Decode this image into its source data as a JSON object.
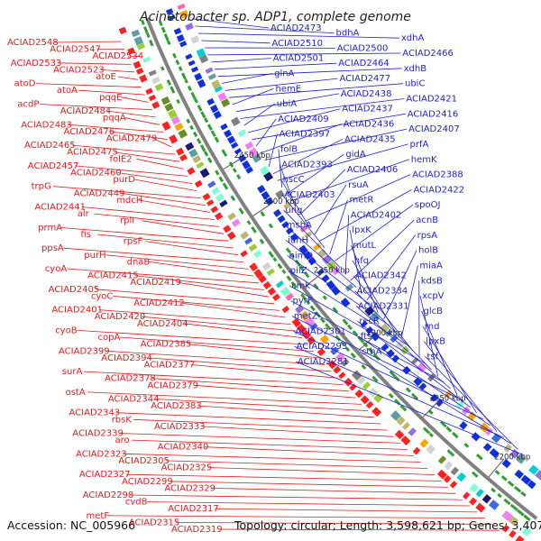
{
  "title": "Acinetobacter sp. ADP1, complete genome",
  "footer": {
    "accession": "Accession: NC_005966",
    "stats": "Topology: circular; Length: 3,598,621 bp; Genes: 3,407"
  },
  "colors": {
    "left_labels": "#e31a1c",
    "right_labels": "#1f1fd1",
    "backbone": "#808080",
    "tick": "#2ea02e",
    "forward_strand": "#ff2020",
    "reverse_strand": "#1030e0"
  },
  "scale_labels": [
    "2450 kbp",
    "2400 kbp",
    "2350 kbp",
    "2300 kbp",
    "2250 kbp",
    "2200 kbp"
  ],
  "left_labels": [
    "ACIAD2548",
    "ACIAD2547",
    "ACIAD2534",
    "ACIAD2533",
    "ACIAD2523",
    "atoE",
    "atoD",
    "atoA",
    "pqqE",
    "acdP",
    "ACIAD2484",
    "pqqA",
    "ACIAD2483",
    "ACIAD2476",
    "ACIAD2479",
    "ACIAD2465",
    "ACIAD2475",
    "folE2",
    "ACIAD2457",
    "ACIAD2460",
    "purD",
    "trpG",
    "ACIAD2449",
    "mdcH",
    "ACIAD2441",
    "alr",
    "rplI",
    "prmA",
    "fis",
    "rpsF",
    "ppsA",
    "purH",
    "dnaB",
    "cyoA",
    "ACIAD2415",
    "ACIAD2419",
    "ACIAD2405",
    "cyoC",
    "ACIAD2412",
    "ACIAD2401",
    "ACIAD2420",
    "ACIAD2404",
    "cyoB",
    "copA",
    "ACIAD2385",
    "ACIAD2399",
    "ACIAD2394",
    "ACIAD2377",
    "surA",
    "ACIAD2378",
    "ACIAD2379",
    "ostA",
    "ACIAD2344",
    "ACIAD2383",
    "ACIAD2343",
    "rbsK",
    "ACIAD2333",
    "ACIAD2339",
    "aro",
    "ACIAD2340",
    "ACIAD2323",
    "ACIAD2305",
    "ACIAD2325",
    "ACIAD2327",
    "ACIAD2299",
    "ACIAD2329",
    "ACIAD2298",
    "cvdB",
    "ACIAD2317",
    "metF",
    "ACIAD2315",
    "ACIAD2319"
  ],
  "right_labels": [
    "ACIAD2473",
    "bdhA",
    "xdhA",
    "ACIAD2510",
    "ACIAD2500",
    "ACIAD2466",
    "ACIAD2501",
    "ACIAD2464",
    "xdhB",
    "glnA",
    "ACIAD2477",
    "ubiC",
    "hemE",
    "ACIAD2438",
    "ACIAD2421",
    "ubiA",
    "ACIAD2437",
    "ACIAD2416",
    "ACIAD2409",
    "ACIAD2436",
    "ACIAD2407",
    "ACIAD2397",
    "ACIAD2435",
    "prfA",
    "folB",
    "gidA",
    "hemK",
    "ACIAD2393",
    "ACIAD2406",
    "ACIAD2388",
    "hscC",
    "rsuA",
    "ACIAD2422",
    "ACIAD2403",
    "metR",
    "spoOJ",
    "ung",
    "ACIAD2402",
    "acnB",
    "msbA",
    "lpxK",
    "rpsA",
    "iunH",
    "mutL",
    "holB",
    "himD",
    "hfq",
    "miaA",
    "pilZ",
    "ACIAD2342",
    "kdsB",
    "cmk",
    "ACIAD2334",
    "xcpV",
    "pyrF",
    "ACIAD2331",
    "glcB",
    "metZ",
    "recR",
    "rnd",
    "ACIAD2301",
    "ftsY",
    "lpxB",
    "ACIAD2293",
    "sthA",
    "tsf",
    "ACIAD2281"
  ]
}
